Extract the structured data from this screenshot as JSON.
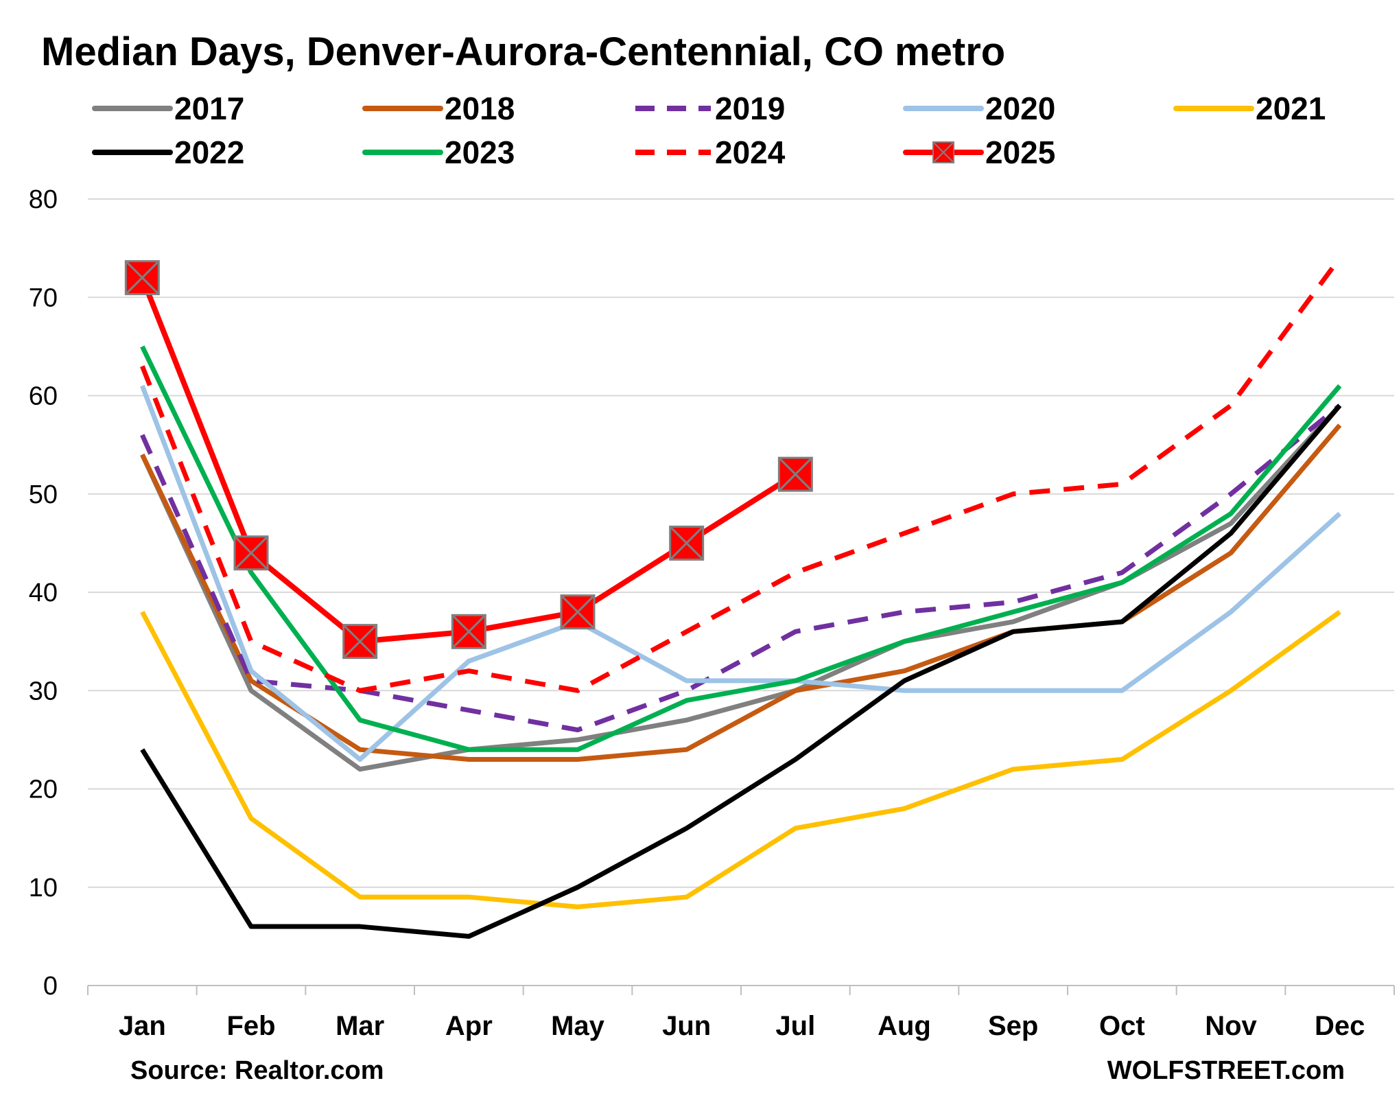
{
  "chart_data": {
    "type": "line",
    "title": "Median Days, Denver-Aurora-Centennial, CO metro",
    "source": "Source: Realtor.com",
    "watermark": "WOLFSTREET.com",
    "categories": [
      "Jan",
      "Feb",
      "Mar",
      "Apr",
      "May",
      "Jun",
      "Jul",
      "Aug",
      "Sep",
      "Oct",
      "Nov",
      "Dec"
    ],
    "ylim": [
      0,
      80
    ],
    "yticks": [
      "0",
      "10",
      "20",
      "30",
      "40",
      "50",
      "60",
      "70",
      "80"
    ],
    "grid": true,
    "legend": "top",
    "series": [
      {
        "name": "2017",
        "color": "#808080",
        "dash": "solid",
        "marker": "none",
        "values": [
          54,
          30,
          22,
          24,
          25,
          27,
          30,
          35,
          37,
          41,
          47,
          59
        ]
      },
      {
        "name": "2018",
        "color": "#c55a11",
        "dash": "solid",
        "marker": "none",
        "values": [
          54,
          31,
          24,
          23,
          23,
          24,
          30,
          32,
          36,
          37,
          44,
          57
        ]
      },
      {
        "name": "2019",
        "color": "#7030a0",
        "dash": "dashed",
        "marker": "none",
        "values": [
          56,
          31,
          30,
          28,
          26,
          30,
          36,
          38,
          39,
          42,
          50,
          59
        ]
      },
      {
        "name": "2020",
        "color": "#9dc3e6",
        "dash": "solid",
        "marker": "none",
        "values": [
          61,
          32,
          23,
          33,
          37,
          31,
          31,
          30,
          30,
          30,
          38,
          48
        ]
      },
      {
        "name": "2021",
        "color": "#ffc000",
        "dash": "solid",
        "marker": "none",
        "values": [
          38,
          17,
          9,
          9,
          8,
          9,
          16,
          18,
          22,
          23,
          30,
          38
        ]
      },
      {
        "name": "2022",
        "color": "#000000",
        "dash": "solid",
        "marker": "none",
        "values": [
          24,
          6,
          6,
          5,
          10,
          16,
          23,
          31,
          36,
          37,
          46,
          59
        ]
      },
      {
        "name": "2023",
        "color": "#00b050",
        "dash": "solid",
        "marker": "none",
        "values": [
          65,
          42,
          27,
          24,
          24,
          29,
          31,
          35,
          38,
          41,
          48,
          61
        ]
      },
      {
        "name": "2024",
        "color": "#ff0000",
        "dash": "dashed",
        "marker": "none",
        "values": [
          63,
          35,
          30,
          32,
          30,
          36,
          42,
          46,
          50,
          51,
          59,
          74
        ]
      },
      {
        "name": "2025",
        "color": "#ff0000",
        "dash": "solid",
        "marker": "square-x",
        "values": [
          72,
          44,
          35,
          36,
          38,
          45,
          52,
          null,
          null,
          null,
          null,
          null
        ]
      }
    ]
  }
}
